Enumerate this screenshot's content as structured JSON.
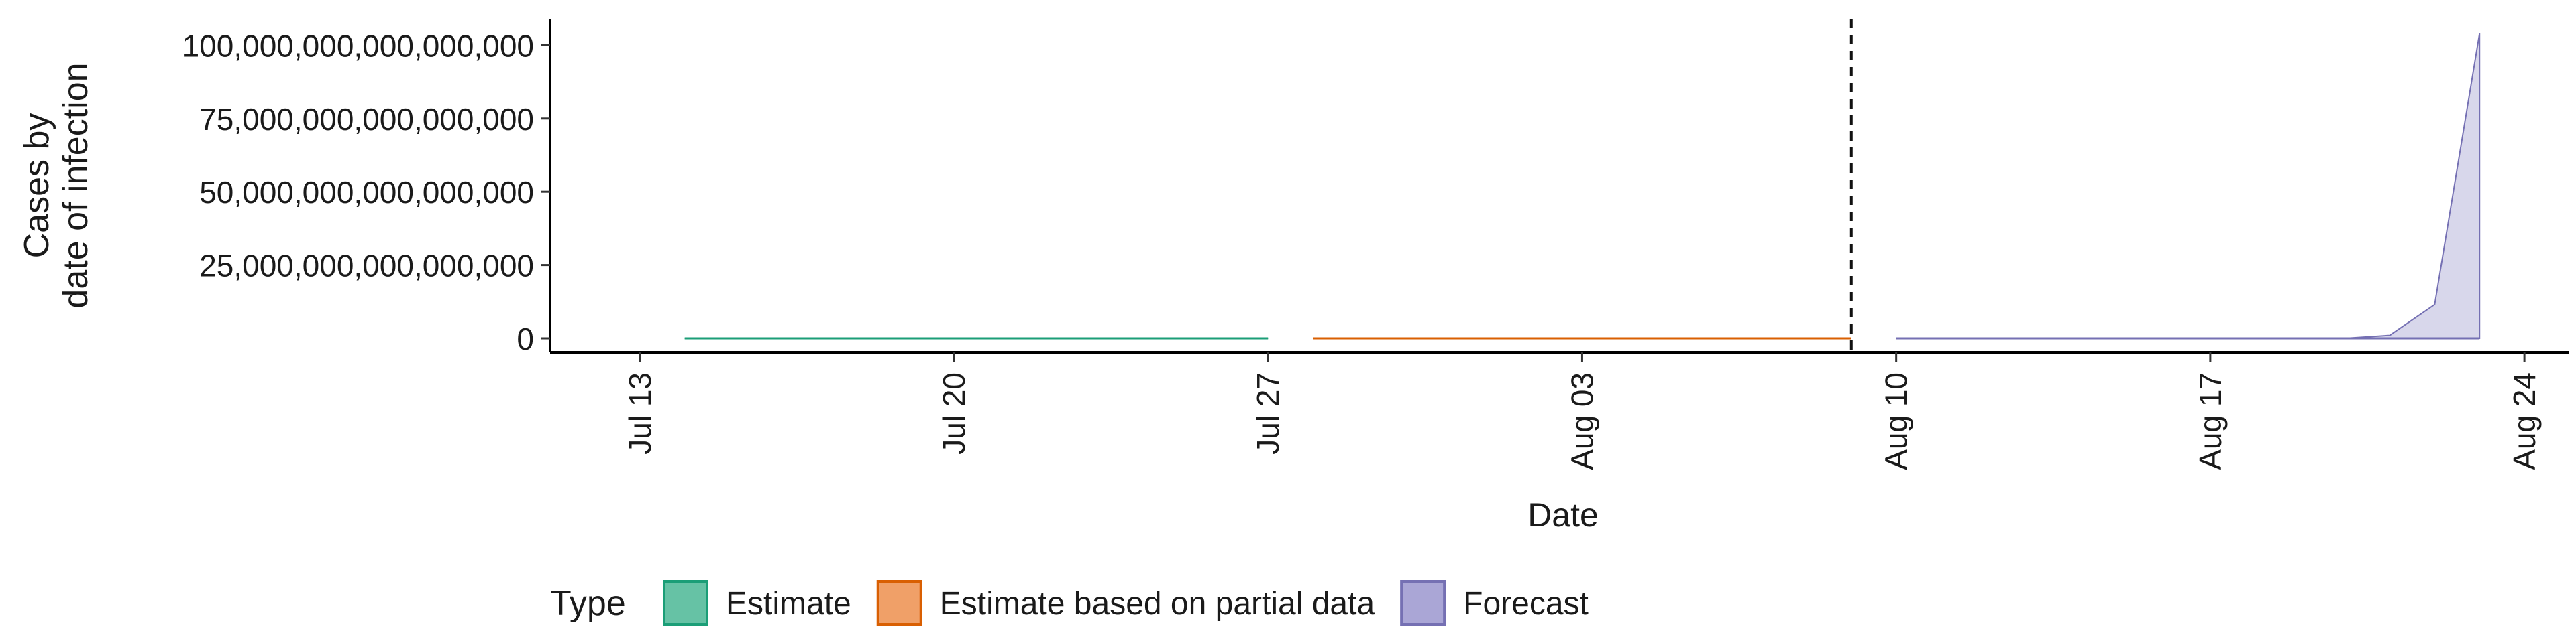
{
  "chart_data": {
    "type": "area",
    "title": "",
    "xlabel": "Date",
    "ylabel_lines": [
      "Cases by",
      "date of infection"
    ],
    "x_ticks": [
      {
        "date": "2020-07-13",
        "label": "Jul 13"
      },
      {
        "date": "2020-07-20",
        "label": "Jul 20"
      },
      {
        "date": "2020-07-27",
        "label": "Jul 27"
      },
      {
        "date": "2020-08-03",
        "label": "Aug 03"
      },
      {
        "date": "2020-08-10",
        "label": "Aug 10"
      },
      {
        "date": "2020-08-17",
        "label": "Aug 17"
      },
      {
        "date": "2020-08-24",
        "label": "Aug 24"
      }
    ],
    "y_ticks": [
      {
        "value": 0,
        "label": "0"
      },
      {
        "value": 25000000000000000000,
        "label": "25,000,000,000,000,000"
      },
      {
        "value": 50000000000000000000,
        "label": "50,000,000,000,000,000"
      },
      {
        "value": 75000000000000000000,
        "label": "75,000,000,000,000,000"
      },
      {
        "value": 100000000000000000000,
        "label": "100,000,000,000,000,000"
      }
    ],
    "xlim": [
      "2020-07-11",
      "2020-08-25"
    ],
    "ylim": [
      -4800000000000000000,
      109000000000000000000
    ],
    "forecast_start_line": "2020-08-09",
    "grid": false,
    "legend": {
      "title": "Type",
      "position": "bottom",
      "entries": [
        {
          "label": "Estimate",
          "fill": "#66c2a5",
          "stroke": "#1b9e77"
        },
        {
          "label": "Estimate based on partial data",
          "fill": "#f0a068",
          "stroke": "#d95f02"
        },
        {
          "label": "Forecast",
          "fill": "#aaa6d6",
          "stroke": "#7570b3"
        }
      ]
    },
    "series": [
      {
        "name": "Estimate",
        "color": "#1b9e77",
        "band_fill": "#1b9e77",
        "x": [
          "2020-07-14",
          "2020-07-27"
        ],
        "lower": [
          0,
          0
        ],
        "upper": [
          0,
          0
        ]
      },
      {
        "name": "Estimate based on partial data",
        "color": "#d95f02",
        "band_fill": "#d95f02",
        "x": [
          "2020-07-28",
          "2020-08-09"
        ],
        "lower": [
          0,
          0
        ],
        "upper": [
          0,
          0
        ]
      },
      {
        "name": "Forecast",
        "color": "#7570b3",
        "band_fill": "#c8c6e3",
        "x": [
          "2020-08-10",
          "2020-08-11",
          "2020-08-12",
          "2020-08-13",
          "2020-08-14",
          "2020-08-15",
          "2020-08-16",
          "2020-08-17",
          "2020-08-18",
          "2020-08-19",
          "2020-08-20",
          "2020-08-21",
          "2020-08-22",
          "2020-08-23"
        ],
        "lower": [
          0,
          0,
          0,
          0,
          0,
          0,
          0,
          0,
          0,
          0,
          0,
          0,
          0,
          0
        ],
        "upper": [
          0,
          0,
          0,
          0,
          0,
          0,
          0,
          0,
          0,
          0,
          0,
          1000000000000000000,
          11500000000000000000,
          104000000000000000000
        ]
      }
    ]
  }
}
